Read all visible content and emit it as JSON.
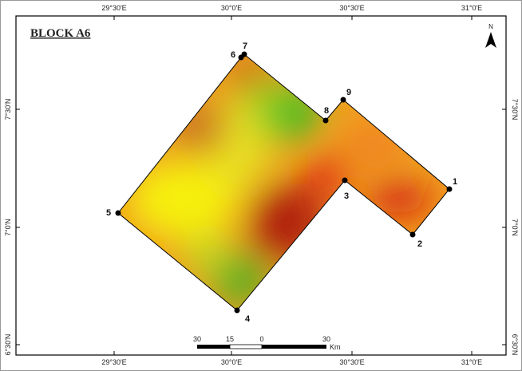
{
  "title": "BLOCK A6",
  "north": "N",
  "longitude_labels": [
    "29°30'E",
    "30°0'E",
    "30°30'E",
    "31°0'E"
  ],
  "latitude_labels": [
    "7°30'N",
    "7°0'N",
    "6°30'N"
  ],
  "points": [
    "1",
    "2",
    "3",
    "4",
    "5",
    "6",
    "7",
    "8",
    "9"
  ],
  "scale_bar": {
    "labels": [
      "30",
      "15",
      "0",
      "30"
    ],
    "unit": "Km"
  }
}
